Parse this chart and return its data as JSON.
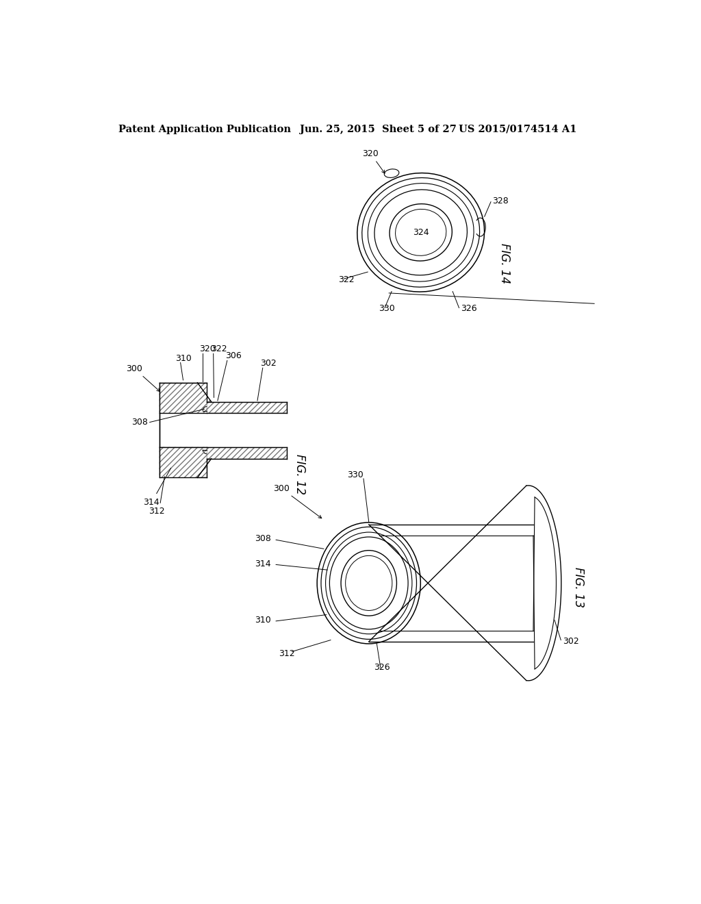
{
  "background_color": "#ffffff",
  "header_left": "Patent Application Publication",
  "header_center": "Jun. 25, 2015  Sheet 5 of 27",
  "header_right": "US 2015/0174514 A1",
  "fig12_label": "FIG. 12",
  "fig13_label": "FIG. 13",
  "fig14_label": "FIG. 14",
  "line_color": "#000000",
  "fig_label_fontsize": 12,
  "header_fontsize": 10.5,
  "ref_fontsize": 9
}
